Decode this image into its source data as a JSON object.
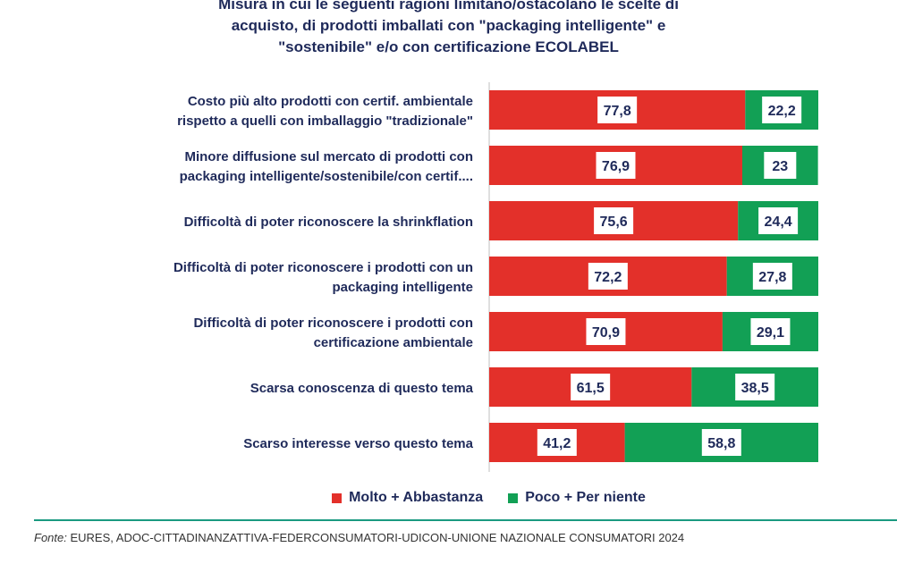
{
  "chart_data": {
    "type": "bar",
    "orientation": "horizontal",
    "stacked": true,
    "title_lines": [
      "Misura in cui le seguenti ragioni limitano/ostacolano le scelte di",
      "acquisto, di prodotti imballati con \"packaging intelligente\" e",
      "\"sostenibile\" e/o con certificazione ECOLABEL"
    ],
    "categories": [
      [
        "Costo più alto prodotti con certif. ambientale",
        "rispetto a quelli con imballaggio \"tradizionale\""
      ],
      [
        "Minore diffusione sul mercato di prodotti con",
        "packaging intelligente/sostenibile/con certif...."
      ],
      [
        "Difficoltà di poter riconoscere la shrinkflation"
      ],
      [
        "Difficoltà di poter riconoscere i prodotti con un",
        "packaging intelligente"
      ],
      [
        "Difficoltà di poter riconoscere i prodotti con",
        "certificazione ambientale"
      ],
      [
        "Scarsa conoscenza di questo tema"
      ],
      [
        "Scarso interesse verso questo tema"
      ]
    ],
    "series": [
      {
        "name": "Molto + Abbastanza",
        "color": "#e3302a",
        "values": [
          77.8,
          76.9,
          75.6,
          72.2,
          70.9,
          61.5,
          41.2
        ],
        "labels": [
          "77,8",
          "76,9",
          "75,6",
          "72,2",
          "70,9",
          "61,5",
          "41,2"
        ]
      },
      {
        "name": "Poco + Per niente",
        "color": "#12a055",
        "values": [
          22.2,
          23,
          24.4,
          27.8,
          29.1,
          38.5,
          58.8
        ],
        "labels": [
          "22,2",
          "23",
          "24,4",
          "27,8",
          "29,1",
          "38,5",
          "58,8"
        ]
      }
    ],
    "xlim": [
      0,
      100
    ],
    "legend_position": "bottom"
  },
  "source": {
    "prefix": "Fonte:",
    "text": " EURES, ADOC-CITTADINANZATTIVA-FEDERCONSUMATORI-UDICON-UNIONE NAZIONALE CONSUMATORI 2024"
  },
  "colors": {
    "label_text": "#1f2a5a",
    "axis_line": "#bfbfbf",
    "divider": "#1a9a80"
  }
}
